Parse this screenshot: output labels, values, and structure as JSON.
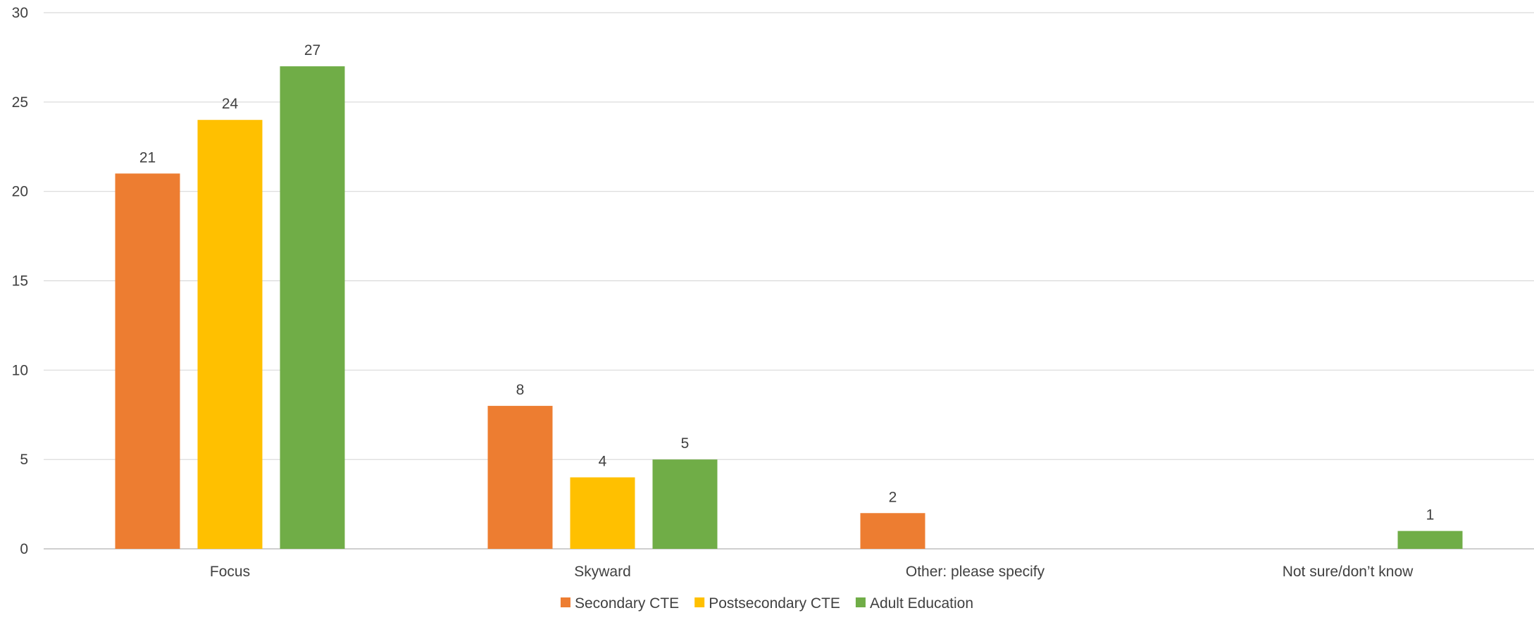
{
  "chart_data": {
    "type": "bar",
    "title": "",
    "xlabel": "",
    "ylabel": "",
    "categories": [
      "Focus",
      "Skyward",
      "Other: please specify",
      "Not sure/don’t know"
    ],
    "series": [
      {
        "name": "Secondary CTE",
        "color": "#ED7D31",
        "values": [
          21,
          8,
          2,
          0
        ]
      },
      {
        "name": "Postsecondary CTE",
        "color": "#FFC000",
        "values": [
          24,
          4,
          0,
          0
        ]
      },
      {
        "name": "Adult Education",
        "color": "#70AD47",
        "values": [
          27,
          5,
          0,
          1
        ]
      }
    ],
    "ylim": [
      0,
      30
    ],
    "yticks": [
      0,
      5,
      10,
      15,
      20,
      25,
      30
    ],
    "grid": true,
    "legend_position": "bottom",
    "data_labels": true
  }
}
